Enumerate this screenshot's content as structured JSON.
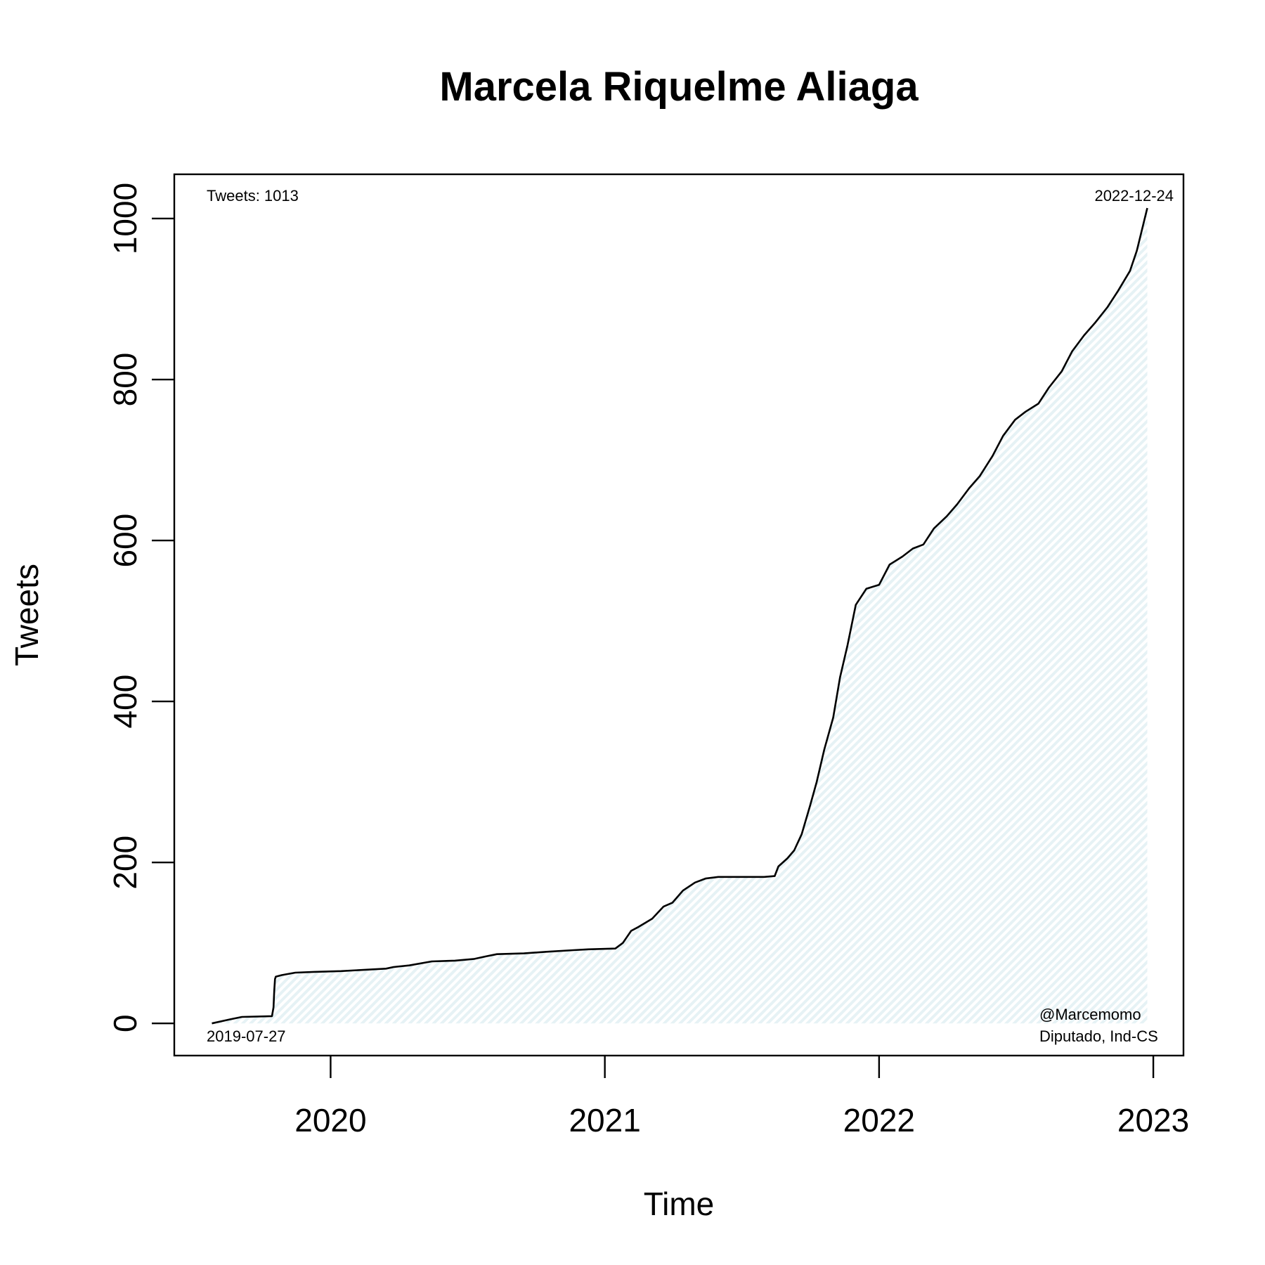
{
  "chart_data": {
    "type": "area",
    "title": "Marcela Riquelme Aliaga",
    "xlabel": "Time",
    "ylabel": "Tweets",
    "x_ticks": [
      2020,
      2021,
      2022,
      2023
    ],
    "x_tick_labels": [
      "2020",
      "2021",
      "2022",
      "2023"
    ],
    "y_ticks": [
      0,
      200,
      400,
      600,
      800,
      1000
    ],
    "y_tick_labels": [
      "0",
      "200",
      "400",
      "600",
      "800",
      "1000"
    ],
    "xlim": [
      2019.43,
      2023.11
    ],
    "ylim": [
      -40,
      1055
    ],
    "grid": false,
    "legend": "none",
    "colors": {
      "line": "#000000",
      "fill": "#e6f2f5",
      "hatch": "#d4e8ee"
    },
    "series": [
      {
        "x": [
          "2019-07-27",
          "2019-08-20",
          "2019-09-05",
          "2019-10-15",
          "2019-10-17",
          "2019-10-18",
          "2019-10-19",
          "2019-10-20",
          "2019-10-28",
          "2019-11-15",
          "2019-12-10",
          "2020-01-15",
          "2020-03-15",
          "2020-03-25",
          "2020-04-15",
          "2020-05-15",
          "2020-06-15",
          "2020-07-10",
          "2020-07-25",
          "2020-08-10",
          "2020-09-15",
          "2020-10-15",
          "2020-11-20",
          "2020-12-10",
          "2021-01-15",
          "2021-01-25",
          "2021-02-05",
          "2021-02-15",
          "2021-03-05",
          "2021-03-20",
          "2021-04-01",
          "2021-04-15",
          "2021-05-01",
          "2021-05-15",
          "2021-06-01",
          "2021-06-15",
          "2021-07-15",
          "2021-08-01",
          "2021-08-15",
          "2021-08-20",
          "2021-09-01",
          "2021-09-10",
          "2021-09-20",
          "2021-10-01",
          "2021-10-10",
          "2021-10-20",
          "2021-11-01",
          "2021-11-10",
          "2021-11-20",
          "2021-12-01",
          "2021-12-15",
          "2022-01-01",
          "2022-01-15",
          "2022-02-01",
          "2022-02-15",
          "2022-03-01",
          "2022-03-15",
          "2022-04-01",
          "2022-04-15",
          "2022-05-01",
          "2022-05-15",
          "2022-06-01",
          "2022-06-15",
          "2022-07-01",
          "2022-07-15",
          "2022-08-01",
          "2022-08-15",
          "2022-09-01",
          "2022-09-15",
          "2022-10-01",
          "2022-10-15",
          "2022-11-01",
          "2022-11-15",
          "2022-12-01",
          "2022-12-10",
          "2022-12-24"
        ],
        "y": [
          0,
          5,
          8,
          9,
          20,
          40,
          55,
          58,
          60,
          63,
          64,
          65,
          68,
          70,
          72,
          77,
          78,
          80,
          83,
          86,
          87,
          89,
          91,
          92,
          93,
          100,
          115,
          120,
          130,
          145,
          150,
          165,
          175,
          180,
          182,
          182,
          182,
          182,
          183,
          195,
          205,
          215,
          235,
          270,
          300,
          340,
          380,
          430,
          470,
          520,
          540,
          545,
          570,
          580,
          590,
          595,
          615,
          630,
          645,
          665,
          680,
          705,
          730,
          750,
          760,
          770,
          790,
          810,
          835,
          855,
          870,
          890,
          910,
          935,
          960,
          1013
        ]
      }
    ],
    "annotations": {
      "top_left": "Tweets: 1013",
      "top_right": "2022-12-24",
      "bottom_left": "2019-07-27",
      "bottom_right_line1": "@Marcemomo",
      "bottom_right_line2": "Diputado, Ind-CS"
    }
  }
}
